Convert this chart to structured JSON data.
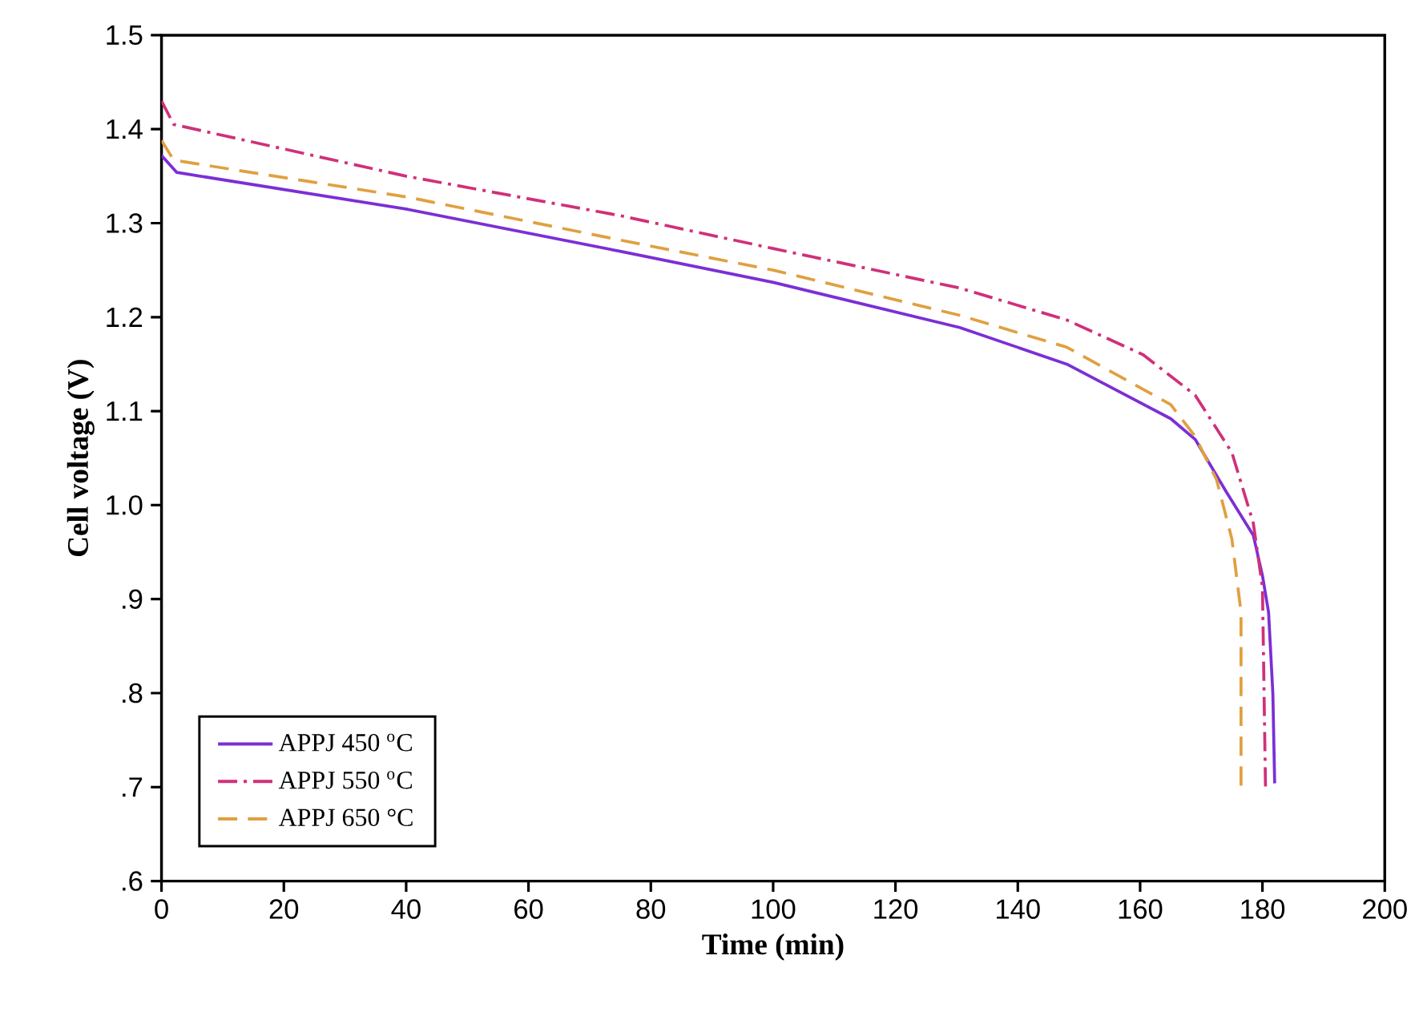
{
  "chart_data": {
    "type": "line",
    "xlabel": "Time (min)",
    "ylabel": "Cell voltage (V)",
    "xlim": [
      0,
      200
    ],
    "xticks": [
      0,
      20,
      40,
      60,
      80,
      100,
      120,
      140,
      160,
      180,
      200
    ],
    "ylim": [
      0.6,
      1.5
    ],
    "yticks": [
      {
        "value": 0.6,
        "label": ".6"
      },
      {
        "value": 0.7,
        "label": ".7"
      },
      {
        "value": 0.8,
        "label": ".8"
      },
      {
        "value": 0.9,
        "label": ".9"
      },
      {
        "value": 1.0,
        "label": "1.0"
      },
      1.1,
      1.2,
      1.3,
      1.4,
      1.5
    ],
    "legend": "bottom left",
    "grid": false,
    "marker": "none",
    "series": [
      {
        "name": "APPJ 450 $^{o}$C",
        "color": "#7b2fd6",
        "line_style": "solid",
        "x": [
          0,
          2.5,
          40,
          75,
          100,
          130.5,
          148,
          165,
          169,
          174,
          178.5,
          180,
          181,
          181.7,
          182
        ],
        "values": [
          1.372,
          1.354,
          1.315,
          1.27,
          1.237,
          1.189,
          1.15,
          1.092,
          1.07,
          1.015,
          0.968,
          0.925,
          0.886,
          0.8,
          0.704
        ]
      },
      {
        "name": "APPJ 550 $^{o}$C",
        "color": "#d0307a",
        "line_style": "dashdot",
        "x": [
          0,
          2,
          40,
          75,
          100,
          130.5,
          148,
          160.5,
          169,
          175,
          178.5,
          180,
          180.5
        ],
        "values": [
          1.43,
          1.405,
          1.35,
          1.308,
          1.273,
          1.231,
          1.197,
          1.16,
          1.117,
          1.056,
          0.981,
          0.913,
          0.7
        ]
      },
      {
        "name": "APPJ 650 °C",
        "color": "#e0a040",
        "line_style": "dashed",
        "x": [
          0,
          2,
          40,
          75,
          100,
          130.5,
          148,
          165,
          169,
          172.5,
          175,
          176.5,
          176.5
        ],
        "values": [
          1.388,
          1.367,
          1.328,
          1.282,
          1.25,
          1.202,
          1.168,
          1.107,
          1.073,
          1.027,
          0.964,
          0.886,
          0.7
        ]
      }
    ]
  }
}
